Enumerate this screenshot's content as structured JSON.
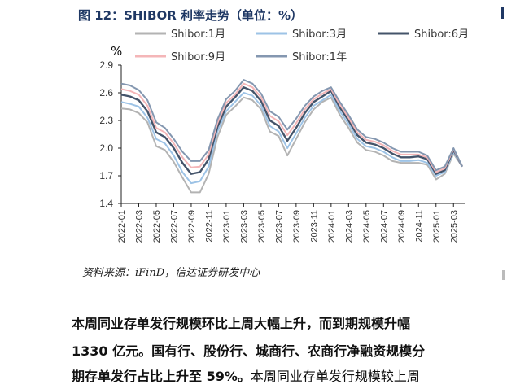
{
  "figure": {
    "title": "图 12：SHIBOR 利率走势（单位：%）",
    "source": "资料来源：iFinD，信达证券研发中心"
  },
  "chart_data": {
    "type": "line",
    "ylabel": "%",
    "ylim": [
      1.4,
      2.9
    ],
    "yticks": [
      "2.9",
      "2.6",
      "2.3",
      "2.0",
      "1.7",
      "1.4"
    ],
    "xticks": [
      "2022-01",
      "2022-03",
      "2022-05",
      "2022-07",
      "2022-09",
      "2022-11",
      "2023-01",
      "2023-03",
      "2023-05",
      "2023-07",
      "2023-09",
      "2023-11",
      "2024-01",
      "2024-03",
      "2024-05",
      "2024-07",
      "2024-09",
      "2024-11",
      "2025-01",
      "2025-03"
    ],
    "legend_position": "top",
    "grid": false,
    "x": [
      "2022-01",
      "2022-02",
      "2022-03",
      "2022-04",
      "2022-05",
      "2022-06",
      "2022-07",
      "2022-08",
      "2022-09",
      "2022-10",
      "2022-11",
      "2022-12",
      "2023-01",
      "2023-02",
      "2023-03",
      "2023-04",
      "2023-05",
      "2023-06",
      "2023-07",
      "2023-08",
      "2023-09",
      "2023-10",
      "2023-11",
      "2023-12",
      "2024-01",
      "2024-02",
      "2024-03",
      "2024-04",
      "2024-05",
      "2024-06",
      "2024-07",
      "2024-08",
      "2024-09",
      "2024-10",
      "2024-11",
      "2024-12",
      "2025-01",
      "2025-02",
      "2025-03",
      "2025-04"
    ],
    "series": [
      {
        "name": "Shibor:1月",
        "color": "#b3b3b3",
        "values": [
          2.43,
          2.42,
          2.38,
          2.28,
          2.02,
          1.98,
          1.85,
          1.68,
          1.52,
          1.52,
          1.72,
          2.12,
          2.36,
          2.45,
          2.55,
          2.52,
          2.42,
          2.18,
          2.13,
          1.92,
          2.1,
          2.28,
          2.42,
          2.5,
          2.55,
          2.36,
          2.22,
          2.06,
          1.98,
          1.96,
          1.92,
          1.86,
          1.84,
          1.84,
          1.84,
          1.82,
          1.66,
          1.72,
          1.94,
          1.8
        ]
      },
      {
        "name": "Shibor:3月",
        "color": "#9dc3e6",
        "values": [
          2.5,
          2.48,
          2.45,
          2.33,
          2.1,
          2.05,
          1.92,
          1.74,
          1.62,
          1.64,
          1.8,
          2.18,
          2.4,
          2.5,
          2.6,
          2.57,
          2.46,
          2.24,
          2.18,
          2.0,
          2.16,
          2.33,
          2.46,
          2.52,
          2.58,
          2.4,
          2.26,
          2.1,
          2.02,
          2.0,
          1.96,
          1.9,
          1.86,
          1.86,
          1.87,
          1.84,
          1.7,
          1.74,
          1.96,
          1.8
        ]
      },
      {
        "name": "Shibor:6月",
        "color": "#44546a",
        "values": [
          2.58,
          2.56,
          2.52,
          2.4,
          2.17,
          2.12,
          2.0,
          1.84,
          1.72,
          1.74,
          1.88,
          2.23,
          2.45,
          2.55,
          2.66,
          2.62,
          2.51,
          2.3,
          2.24,
          2.08,
          2.22,
          2.38,
          2.5,
          2.56,
          2.62,
          2.44,
          2.3,
          2.14,
          2.06,
          2.04,
          2.0,
          1.94,
          1.9,
          1.9,
          1.91,
          1.88,
          1.72,
          1.76,
          1.98,
          1.8
        ]
      },
      {
        "name": "Shibor:9月",
        "color": "#f4b6b8",
        "values": [
          2.64,
          2.62,
          2.58,
          2.46,
          2.22,
          2.17,
          2.05,
          1.9,
          1.79,
          1.8,
          1.93,
          2.27,
          2.49,
          2.58,
          2.7,
          2.66,
          2.55,
          2.35,
          2.29,
          2.14,
          2.27,
          2.42,
          2.53,
          2.59,
          2.64,
          2.47,
          2.33,
          2.17,
          2.09,
          2.07,
          2.03,
          1.97,
          1.93,
          1.93,
          1.93,
          1.9,
          1.74,
          1.78,
          1.99,
          1.8
        ]
      },
      {
        "name": "Shibor:1年",
        "color": "#8497b0",
        "values": [
          2.7,
          2.68,
          2.63,
          2.52,
          2.28,
          2.22,
          2.1,
          1.96,
          1.86,
          1.86,
          1.98,
          2.31,
          2.53,
          2.62,
          2.74,
          2.7,
          2.59,
          2.4,
          2.34,
          2.2,
          2.32,
          2.46,
          2.56,
          2.62,
          2.66,
          2.5,
          2.36,
          2.2,
          2.12,
          2.1,
          2.06,
          2.0,
          1.96,
          1.96,
          1.96,
          1.92,
          1.76,
          1.8,
          2.0,
          1.8
        ]
      }
    ]
  },
  "paragraph": {
    "line1": "本周同业存单发行规模环比上周大幅上升，而到期规模升幅",
    "line2": "1330 亿元。国有行、股份行、城商行、农商行净融资规模分",
    "line3_bold": "期存单发行占比上升至 59%。",
    "line3_normal": "本周同业存单发行规模较上周"
  }
}
